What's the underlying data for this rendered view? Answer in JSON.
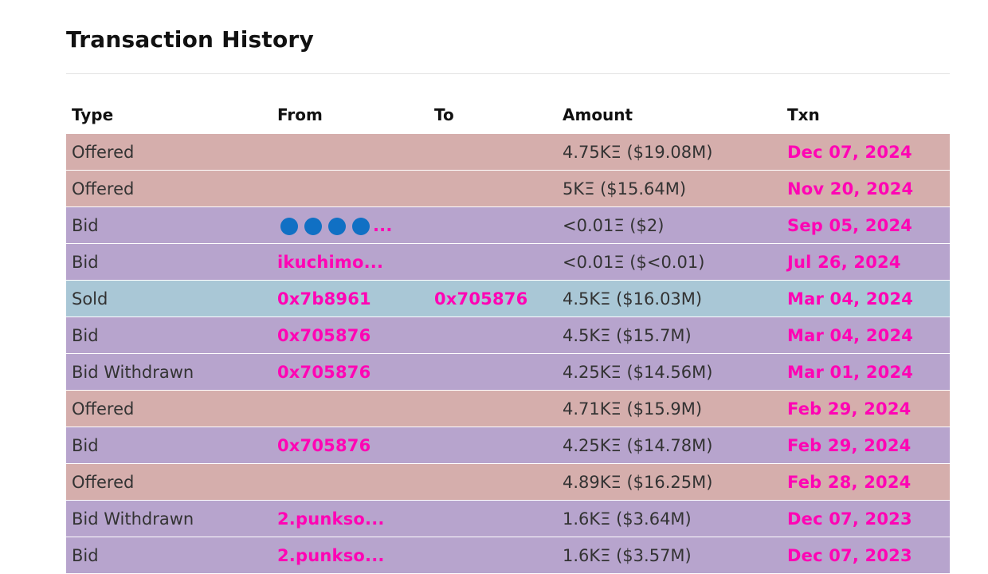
{
  "title": "Transaction History",
  "columns": [
    "Type",
    "From",
    "To",
    "Amount",
    "Txn"
  ],
  "colors": {
    "offered_row": "#d5aeac",
    "bid_row": "#b7a4cd",
    "sold_row": "#a9c7d6",
    "link": "#ff04b4",
    "dot": "#1070c4"
  },
  "rows": [
    {
      "type": "Offered",
      "kind": "offered",
      "from": "",
      "to": "",
      "amount": "4.75KΞ ($19.08M)",
      "txn": "Dec 07, 2024"
    },
    {
      "type": "Offered",
      "kind": "offered",
      "from": "",
      "to": "",
      "amount": "5KΞ ($15.64M)",
      "txn": "Nov 20, 2024"
    },
    {
      "type": "Bid",
      "kind": "bid",
      "from": "●●●●...",
      "from_dots": true,
      "to": "",
      "amount": "<0.01Ξ ($2)",
      "txn": "Sep 05, 2024"
    },
    {
      "type": "Bid",
      "kind": "bid",
      "from": "ikuchimo...",
      "to": "",
      "amount": "<0.01Ξ ($<0.01)",
      "txn": "Jul 26, 2024"
    },
    {
      "type": "Sold",
      "kind": "sold",
      "from": "0x7b8961",
      "to": "0x705876",
      "amount": "4.5KΞ ($16.03M)",
      "txn": "Mar 04, 2024"
    },
    {
      "type": "Bid",
      "kind": "bid",
      "from": "0x705876",
      "to": "",
      "amount": "4.5KΞ ($15.7M)",
      "txn": "Mar 04, 2024"
    },
    {
      "type": "Bid Withdrawn",
      "kind": "bid-withdrawn",
      "from": "0x705876",
      "to": "",
      "amount": "4.25KΞ ($14.56M)",
      "txn": "Mar 01, 2024"
    },
    {
      "type": "Offered",
      "kind": "offered",
      "from": "",
      "to": "",
      "amount": "4.71KΞ ($15.9M)",
      "txn": "Feb 29, 2024"
    },
    {
      "type": "Bid",
      "kind": "bid",
      "from": "0x705876",
      "to": "",
      "amount": "4.25KΞ ($14.78M)",
      "txn": "Feb 29, 2024"
    },
    {
      "type": "Offered",
      "kind": "offered",
      "from": "",
      "to": "",
      "amount": "4.89KΞ ($16.25M)",
      "txn": "Feb 28, 2024"
    },
    {
      "type": "Bid Withdrawn",
      "kind": "bid-withdrawn",
      "from": "2.punkso...",
      "to": "",
      "amount": "1.6KΞ ($3.64M)",
      "txn": "Dec 07, 2023"
    },
    {
      "type": "Bid",
      "kind": "bid",
      "from": "2.punkso...",
      "to": "",
      "amount": "1.6KΞ ($3.57M)",
      "txn": "Dec 07, 2023"
    }
  ]
}
